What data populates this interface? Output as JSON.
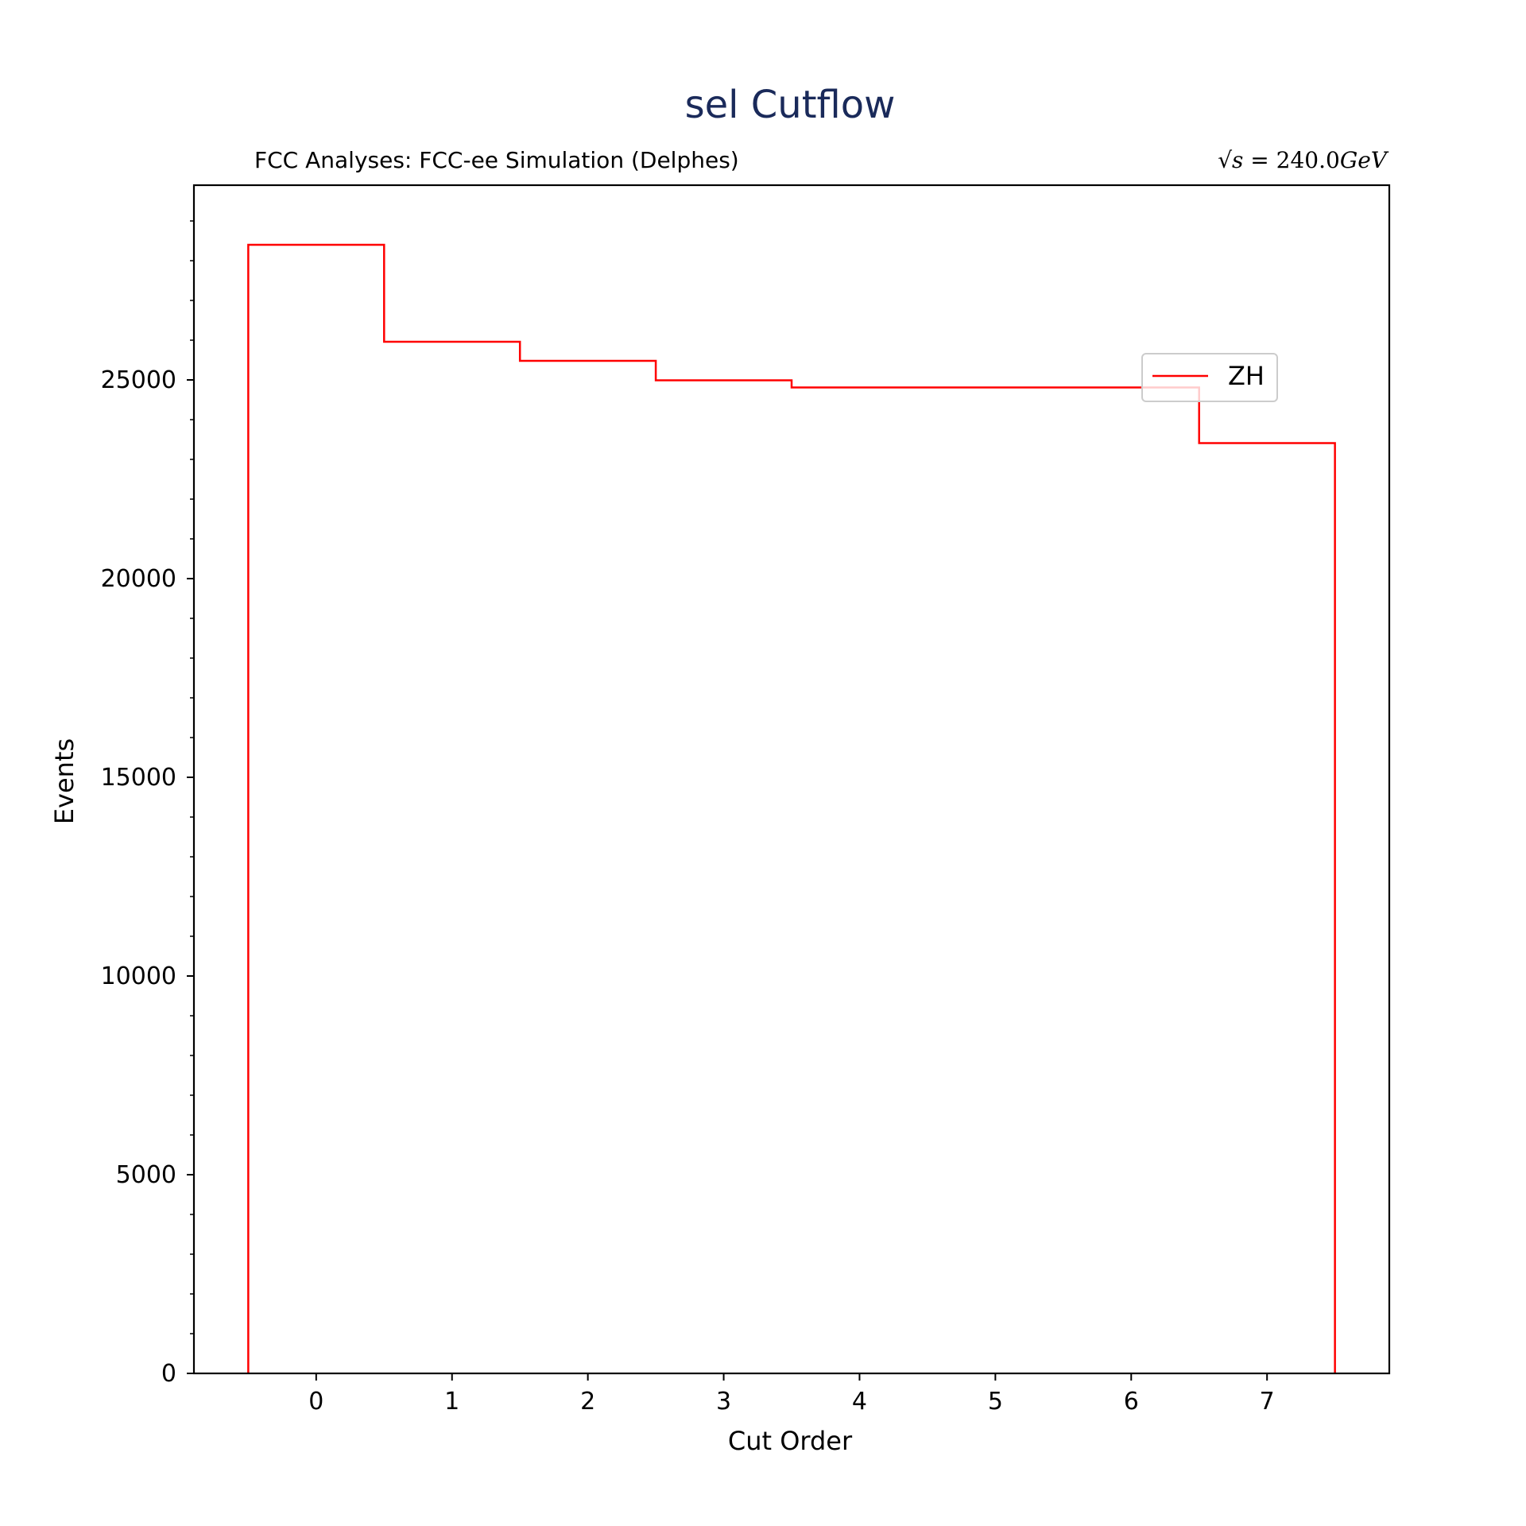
{
  "chart_data": {
    "type": "histogram",
    "title": "sel Cutflow",
    "subtitle_left": "FCC Analyses: FCC-ee Simulation (Delphes)",
    "subtitle_right": "√s = 240.0GeV",
    "xlabel": "Cut Order",
    "ylabel": "Events",
    "xlim": [
      -0.9,
      7.9
    ],
    "ylim": [
      0,
      29900
    ],
    "x_ticks": [
      "0",
      "1",
      "2",
      "3",
      "4",
      "5",
      "6",
      "7"
    ],
    "y_ticks": [
      "0",
      "5000",
      "10000",
      "15000",
      "20000",
      "25000"
    ],
    "grid": false,
    "legend_position": "upper-right",
    "series": [
      {
        "name": "ZH",
        "color": "#ff0000",
        "style": "step",
        "bin_edges": [
          -0.5,
          0.5,
          1.5,
          2.5,
          3.5,
          4.5,
          5.5,
          6.5,
          7.5
        ],
        "values": [
          28400,
          25960,
          25480,
          24990,
          24810,
          24810,
          24810,
          23410
        ]
      }
    ]
  }
}
